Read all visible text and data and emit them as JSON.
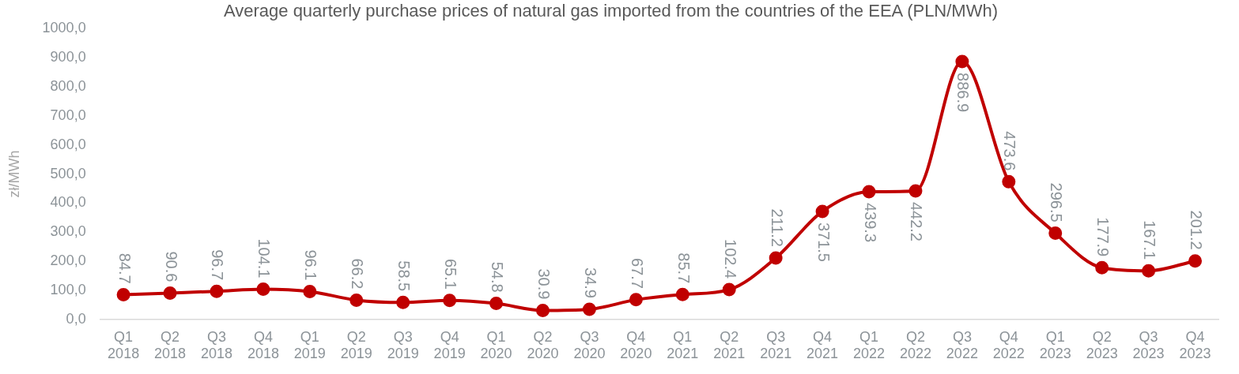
{
  "chart_data": {
    "type": "line",
    "title": "Average quarterly purchase prices of natural gas imported from the countries of the EEA (PLN/MWh)",
    "ylabel": "zł/MWh",
    "categories": [
      "Q1 2018",
      "Q2 2018",
      "Q3 2018",
      "Q4 2018",
      "Q1 2019",
      "Q2 2019",
      "Q3 2019",
      "Q4 2019",
      "Q1 2020",
      "Q2 2020",
      "Q3 2020",
      "Q4 2020",
      "Q1 2021",
      "Q2 2021",
      "Q3 2021",
      "Q4 2021",
      "Q1 2022",
      "Q2 2022",
      "Q3 2022",
      "Q4 2022",
      "Q1 2023",
      "Q2 2023",
      "Q3 2023",
      "Q4 2023"
    ],
    "series": [
      {
        "color": "#c00000",
        "values": [
          84.7,
          90.6,
          96.7,
          104.1,
          96.1,
          66.2,
          58.5,
          65.1,
          54.8,
          30.9,
          34.9,
          67.7,
          85.7,
          102.4,
          211.2,
          371.5,
          439.3,
          442.2,
          886.9,
          473.6,
          296.5,
          177.9,
          167.1,
          201.2
        ]
      }
    ],
    "ylim": [
      0,
      1000
    ],
    "yticks": [
      {
        "value": 0,
        "label": "0,0"
      },
      {
        "value": 100,
        "label": "100,0"
      },
      {
        "value": 200,
        "label": "200,0"
      },
      {
        "value": 300,
        "label": "300,0"
      },
      {
        "value": 400,
        "label": "400,0"
      },
      {
        "value": 500,
        "label": "500,0"
      },
      {
        "value": 600,
        "label": "600,0"
      },
      {
        "value": 700,
        "label": "700,0"
      },
      {
        "value": 800,
        "label": "800,0"
      },
      {
        "value": 900,
        "label": "900,0"
      },
      {
        "value": 1000,
        "label": "1000,0"
      }
    ],
    "grid": false,
    "legend": false,
    "marker": "circle",
    "line_style": "solid",
    "data_labels": true
  }
}
